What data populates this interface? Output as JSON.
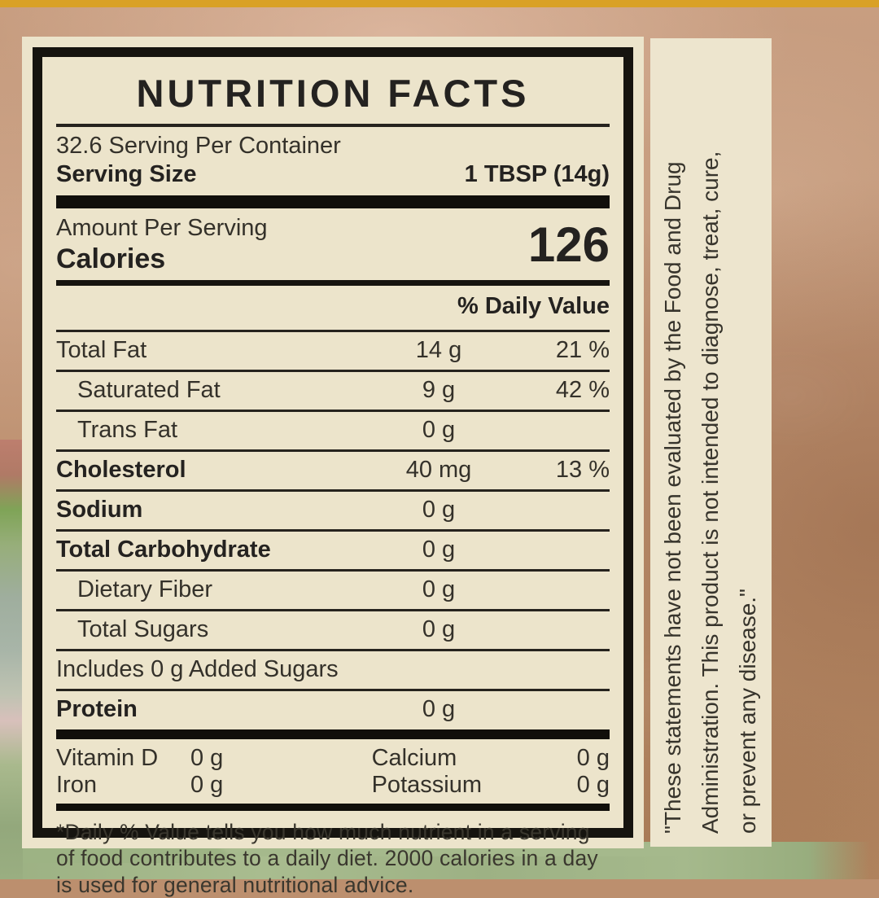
{
  "page": {
    "accent_bar_color": "#D9A126",
    "kraft_color": "#BC8F6E",
    "cream_color": "#ECE4CB",
    "ink_color": "#16140F",
    "foliage_color": "#9DB384"
  },
  "label": {
    "title": "NUTRITION FACTS",
    "servings_per_container": "32.6 Serving Per Container",
    "serving_size_label": "Serving Size",
    "serving_size_value": "1 TBSP (14g)",
    "amount_per_serving_label": "Amount Per Serving",
    "calories_label": "Calories",
    "calories_value": "126",
    "daily_value_header": "% Daily Value",
    "rows": [
      {
        "name": "Total Fat",
        "amount": "14 g",
        "dv": "21 %"
      },
      {
        "name": "Saturated Fat",
        "amount": "9 g",
        "dv": "42 %"
      },
      {
        "name": "Trans Fat",
        "amount": "0 g",
        "dv": ""
      },
      {
        "name": "Cholesterol",
        "amount": "40 mg",
        "dv": "13 %"
      },
      {
        "name": "Sodium",
        "amount": "0 g",
        "dv": ""
      },
      {
        "name": "Total Carbohydrate",
        "amount": "0 g",
        "dv": ""
      },
      {
        "name": "Dietary Fiber",
        "amount": "0 g",
        "dv": ""
      },
      {
        "name": "Total Sugars",
        "amount": "0 g",
        "dv": ""
      },
      {
        "name": "Includes 0 g Added Sugars",
        "amount": "",
        "dv": ""
      },
      {
        "name": "Protein",
        "amount": "0 g",
        "dv": ""
      }
    ],
    "micronutrients": [
      {
        "name": "Vitamin D",
        "value": "0 g"
      },
      {
        "name": "Calcium",
        "value": "0 g"
      },
      {
        "name": "Iron",
        "value": "0 g"
      },
      {
        "name": "Potassium",
        "value": "0 g"
      }
    ],
    "footnote": "*Daily % Value tells you how much nutrient in a serving of food contributes to a daily diet. 2000 calories in a day is used for general nutritional advice."
  },
  "disclaimer": {
    "line1": "\"These statements have not been evaluated by the Food and Drug",
    "line2": "Administration. This product is not intended to diagnose, treat, cure,",
    "line3": "or prevent any disease.\""
  }
}
